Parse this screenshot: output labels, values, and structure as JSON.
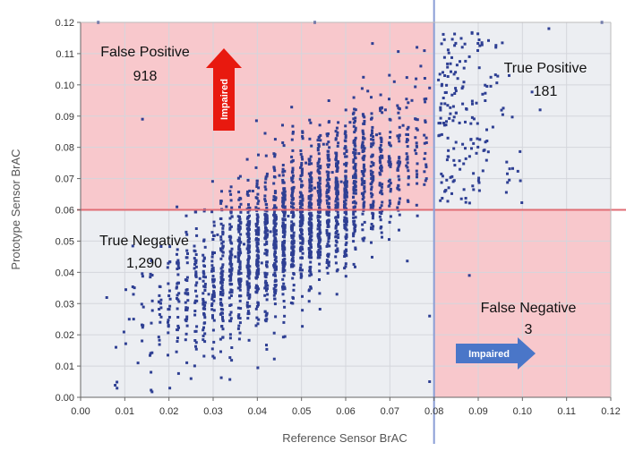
{
  "chart_data": {
    "type": "scatter",
    "xlabel": "Reference Sensor BrAC",
    "ylabel": "Prototype Sensor BrAC",
    "xlim": [
      0.0,
      0.12
    ],
    "ylim": [
      0.0,
      0.12
    ],
    "x_ticks": [
      "0.00",
      "0.01",
      "0.02",
      "0.03",
      "0.04",
      "0.05",
      "0.06",
      "0.07",
      "0.08",
      "0.09",
      "0.10",
      "0.11",
      "0.12"
    ],
    "y_ticks": [
      "0.00",
      "0.01",
      "0.02",
      "0.03",
      "0.04",
      "0.05",
      "0.06",
      "0.07",
      "0.08",
      "0.09",
      "0.10",
      "0.11",
      "0.12"
    ],
    "threshold_x": 0.08,
    "threshold_y": 0.06,
    "grid": true,
    "colors": {
      "points": "#2e3f93",
      "positive_region": "#f8c8cc",
      "negative_region": "#eceef2",
      "threshold_vertical": "#8a9ed6",
      "threshold_horizontal": "#e06d74",
      "arrow_vertical": "#e8190f",
      "arrow_horizontal": "#4a76c8"
    },
    "quadrants": [
      {
        "label": "False Positive",
        "count": "918"
      },
      {
        "label": "True Positive",
        "count": "181"
      },
      {
        "label": "True Negative",
        "count": "1,290"
      },
      {
        "label": "False Negative",
        "count": "3"
      }
    ],
    "annotations": [
      {
        "text": "Impaired",
        "direction": "up"
      },
      {
        "text": "Impaired",
        "direction": "right"
      }
    ],
    "point_count_approx": 2392,
    "sample_points": [
      [
        0.008,
        0.016
      ],
      [
        0.011,
        0.025
      ],
      [
        0.013,
        0.011
      ],
      [
        0.014,
        0.089
      ],
      [
        0.018,
        0.024
      ],
      [
        0.022,
        0.019
      ],
      [
        0.025,
        0.006
      ],
      [
        0.027,
        0.038
      ],
      [
        0.029,
        0.033
      ],
      [
        0.031,
        0.052
      ],
      [
        0.033,
        0.061
      ],
      [
        0.035,
        0.045
      ],
      [
        0.037,
        0.049
      ],
      [
        0.039,
        0.066
      ],
      [
        0.041,
        0.043
      ],
      [
        0.043,
        0.053
      ],
      [
        0.045,
        0.071
      ],
      [
        0.047,
        0.058
      ],
      [
        0.049,
        0.06
      ],
      [
        0.051,
        0.075
      ],
      [
        0.053,
        0.067
      ],
      [
        0.055,
        0.081
      ],
      [
        0.057,
        0.072
      ],
      [
        0.059,
        0.069
      ],
      [
        0.061,
        0.088
      ],
      [
        0.063,
        0.078
      ],
      [
        0.065,
        0.098
      ],
      [
        0.067,
        0.084
      ],
      [
        0.069,
        0.092
      ],
      [
        0.071,
        0.101
      ],
      [
        0.073,
        0.087
      ],
      [
        0.075,
        0.095
      ],
      [
        0.077,
        0.106
      ],
      [
        0.079,
        0.099
      ],
      [
        0.082,
        0.104
      ],
      [
        0.085,
        0.091
      ],
      [
        0.088,
        0.109
      ],
      [
        0.091,
        0.097
      ],
      [
        0.094,
        0.112
      ],
      [
        0.097,
        0.103
      ],
      [
        0.104,
        0.092
      ],
      [
        0.106,
        0.118
      ],
      [
        0.118,
        0.12
      ],
      [
        0.079,
        0.005
      ],
      [
        0.088,
        0.039
      ],
      [
        0.079,
        0.026
      ],
      [
        0.053,
        0.12
      ],
      [
        0.004,
        0.12
      ]
    ]
  }
}
